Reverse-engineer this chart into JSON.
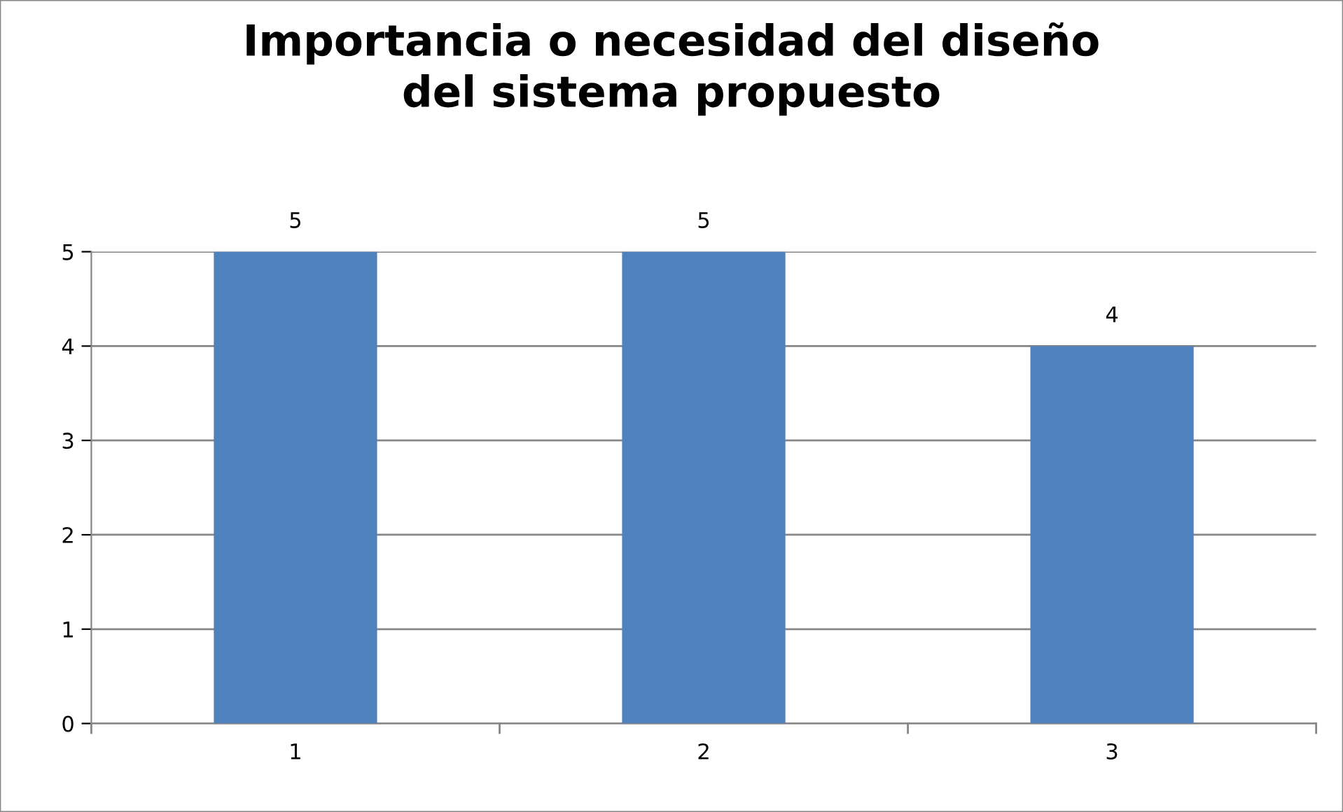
{
  "chart_data": {
    "type": "bar",
    "title": "Importancia o necesidad del diseño\ndel sistema propuesto",
    "categories": [
      "1",
      "2",
      "3"
    ],
    "values": [
      5,
      5,
      4
    ],
    "color": "#4f81bd",
    "ylim": [
      0,
      5
    ],
    "yticks": [
      0,
      1,
      2,
      3,
      4,
      5
    ],
    "grid": "y",
    "data_labels": true
  }
}
